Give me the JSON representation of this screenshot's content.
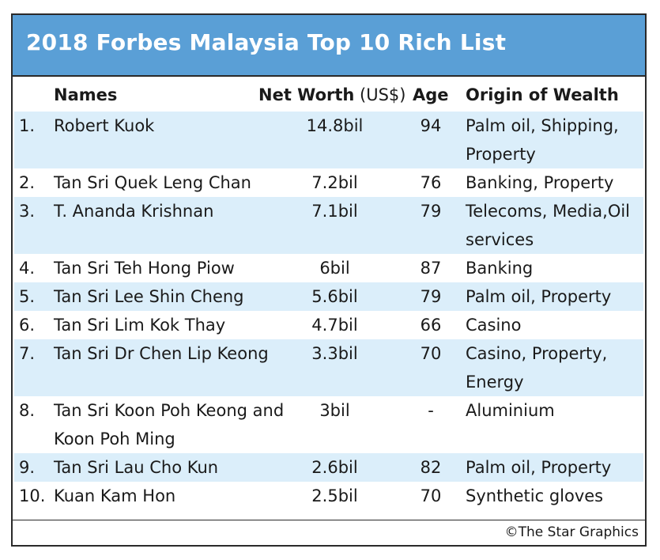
{
  "title": "2018 Forbes Malaysia Top 10 Rich List",
  "columns": {
    "names": "Names",
    "net_worth": "Net Worth",
    "net_worth_unit": " (US$)",
    "age": "Age",
    "origin": "Origin of Wealth"
  },
  "rows": [
    {
      "rank": "1.",
      "name": [
        "Robert Kuok"
      ],
      "worth": "14.8bil",
      "age": "94",
      "origin": [
        "Palm oil, Shipping,",
        "Property"
      ]
    },
    {
      "rank": "2.",
      "name": [
        "Tan Sri Quek Leng Chan"
      ],
      "worth": "7.2bil",
      "age": "76",
      "origin": [
        "Banking, Property"
      ]
    },
    {
      "rank": "3.",
      "name": [
        "T. Ananda Krishnan"
      ],
      "worth": "7.1bil",
      "age": "79",
      "origin": [
        "Telecoms, Media,Oil",
        "services"
      ]
    },
    {
      "rank": "4.",
      "name": [
        "Tan Sri Teh Hong Piow"
      ],
      "worth": "6bil",
      "age": "87",
      "origin": [
        "Banking"
      ]
    },
    {
      "rank": "5.",
      "name": [
        "Tan Sri Lee Shin Cheng"
      ],
      "worth": "5.6bil",
      "age": "79",
      "origin": [
        "Palm oil, Property"
      ]
    },
    {
      "rank": "6.",
      "name": [
        "Tan Sri Lim Kok Thay"
      ],
      "worth": "4.7bil",
      "age": "66",
      "origin": [
        "Casino"
      ]
    },
    {
      "rank": "7.",
      "name": [
        "Tan Sri Dr Chen Lip Keong"
      ],
      "worth": "3.3bil",
      "age": "70",
      "origin": [
        "Casino, Property,",
        "Energy"
      ]
    },
    {
      "rank": "8.",
      "name": [
        "Tan Sri Koon Poh Keong and",
        "Koon Poh Ming"
      ],
      "worth": "3bil",
      "age": "-",
      "origin": [
        "Aluminium"
      ]
    },
    {
      "rank": "9.",
      "name": [
        "Tan Sri Lau Cho Kun"
      ],
      "worth": "2.6bil",
      "age": "82",
      "origin": [
        "Palm oil, Property"
      ]
    },
    {
      "rank": "10.",
      "name": [
        "Kuan Kam Hon"
      ],
      "worth": "2.5bil",
      "age": "70",
      "origin": [
        "Synthetic gloves"
      ]
    }
  ],
  "credit": "©The Star Graphics",
  "colors": {
    "title_bar": "#5a9fd6",
    "stripe": "#dbeefa",
    "border": "#2a2a2a"
  }
}
